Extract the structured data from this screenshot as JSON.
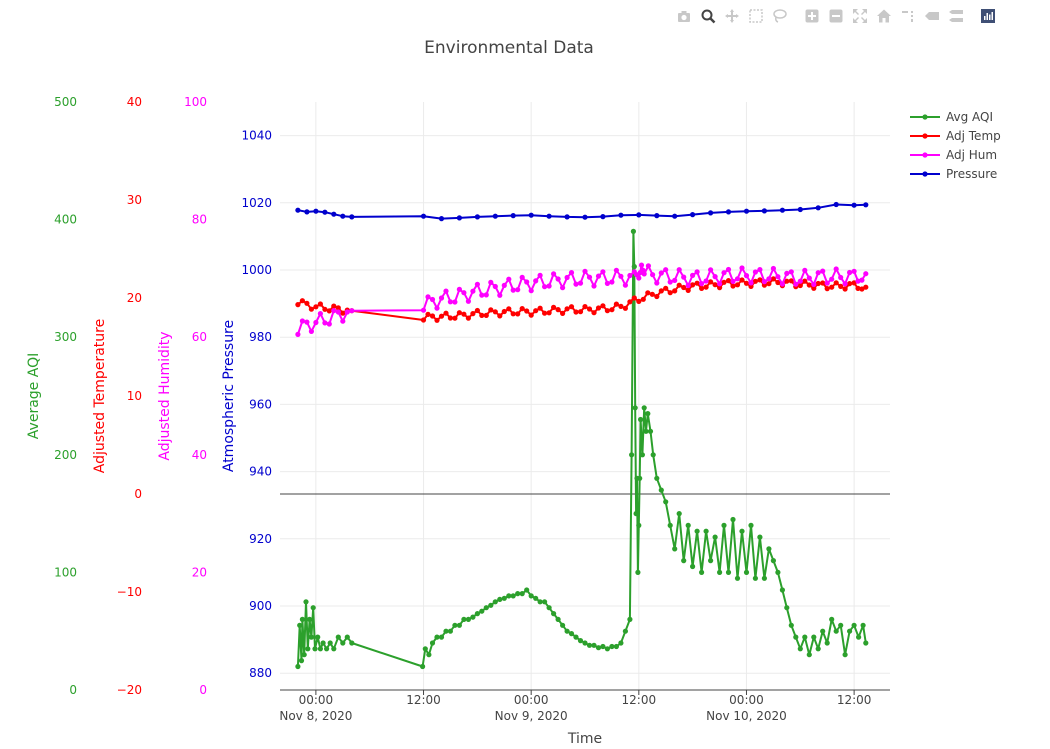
{
  "modebar": {
    "buttons": [
      {
        "name": "camera-icon",
        "active": false
      },
      {
        "name": "zoom-icon",
        "active": true
      },
      {
        "name": "pan-icon",
        "active": false
      },
      {
        "name": "box-select-icon",
        "active": false
      },
      {
        "name": "lasso-select-icon",
        "active": false
      },
      {
        "name": "zoom-in-icon",
        "active": false
      },
      {
        "name": "zoom-out-icon",
        "active": false
      },
      {
        "name": "autoscale-icon",
        "active": false
      },
      {
        "name": "reset-axes-icon",
        "active": false
      },
      {
        "name": "spike-lines-icon",
        "active": false
      },
      {
        "name": "hover-closest-icon",
        "active": false
      },
      {
        "name": "hover-compare-icon",
        "active": false
      },
      {
        "name": "plotly-logo-icon",
        "active": false
      }
    ]
  },
  "chart_data": {
    "type": "line",
    "title": "Environmental Data",
    "xlabel": "Time",
    "x_tick_labels": [
      {
        "t": 0,
        "line1": "00:00",
        "line2": "Nov 8, 2020"
      },
      {
        "t": 12,
        "line1": "12:00",
        "line2": ""
      },
      {
        "t": 24,
        "line1": "00:00",
        "line2": "Nov 9, 2020"
      },
      {
        "t": 36,
        "line1": "12:00",
        "line2": ""
      },
      {
        "t": 48,
        "line1": "00:00",
        "line2": "Nov 10, 2020"
      },
      {
        "t": 60,
        "line1": "12:00",
        "line2": ""
      }
    ],
    "xlim_hours": [
      -4,
      64
    ],
    "grid": true,
    "legend_position": "top-right",
    "axes": [
      {
        "id": "aqi",
        "label": "Average AQI",
        "color": "#2ca02c",
        "ylim": [
          0,
          500
        ],
        "ticks": [
          0,
          100,
          200,
          300,
          400,
          500
        ]
      },
      {
        "id": "temp",
        "label": "Adjusted Temperature",
        "color": "#ff0000",
        "ylim": [
          -20,
          40
        ],
        "ticks": [
          -20,
          -10,
          0,
          10,
          20,
          30,
          40
        ],
        "tick_labels": [
          "−20",
          "−10",
          "0",
          "10",
          "20",
          "30",
          "40"
        ]
      },
      {
        "id": "hum",
        "label": "Adjusted Humidity",
        "color": "#ff00ff",
        "ylim": [
          0,
          100
        ],
        "ticks": [
          0,
          20,
          40,
          60,
          80,
          100
        ]
      },
      {
        "id": "pres",
        "label": "Atmospheric Pressure",
        "color": "#0000cd",
        "ylim": [
          875,
          1050
        ],
        "ticks": [
          880,
          900,
          920,
          940,
          960,
          980,
          1000,
          1020,
          1040
        ]
      }
    ],
    "series": [
      {
        "name": "Avg AQI",
        "axis": "aqi",
        "color": "#2ca02c",
        "points": [
          [
            -2.0,
            20
          ],
          [
            -1.8,
            55
          ],
          [
            -1.6,
            25
          ],
          [
            -1.5,
            60
          ],
          [
            -1.3,
            30
          ],
          [
            -1.1,
            75
          ],
          [
            -0.9,
            35
          ],
          [
            -0.7,
            60
          ],
          [
            -0.5,
            45
          ],
          [
            -0.3,
            70
          ],
          [
            -0.1,
            35
          ],
          [
            0.2,
            45
          ],
          [
            0.5,
            35
          ],
          [
            0.8,
            40
          ],
          [
            1.2,
            35
          ],
          [
            1.6,
            40
          ],
          [
            2.0,
            35
          ],
          [
            2.5,
            45
          ],
          [
            3.0,
            40
          ],
          [
            3.5,
            45
          ],
          [
            4.0,
            40
          ],
          [
            11.9,
            20
          ],
          [
            12.2,
            35
          ],
          [
            12.6,
            30
          ],
          [
            13.0,
            40
          ],
          [
            13.5,
            45
          ],
          [
            14.0,
            45
          ],
          [
            14.5,
            50
          ],
          [
            15.0,
            50
          ],
          [
            15.5,
            55
          ],
          [
            16.0,
            55
          ],
          [
            16.5,
            60
          ],
          [
            17.0,
            60
          ],
          [
            17.5,
            62
          ],
          [
            18.0,
            65
          ],
          [
            18.5,
            67
          ],
          [
            19.0,
            70
          ],
          [
            19.5,
            72
          ],
          [
            20.0,
            75
          ],
          [
            20.5,
            77
          ],
          [
            21.0,
            78
          ],
          [
            21.5,
            80
          ],
          [
            22.0,
            80
          ],
          [
            22.5,
            82
          ],
          [
            23.0,
            82
          ],
          [
            23.5,
            85
          ],
          [
            24.0,
            80
          ],
          [
            24.5,
            78
          ],
          [
            25.0,
            75
          ],
          [
            25.5,
            75
          ],
          [
            26.0,
            70
          ],
          [
            26.5,
            65
          ],
          [
            27.0,
            60
          ],
          [
            27.5,
            55
          ],
          [
            28.0,
            50
          ],
          [
            28.5,
            48
          ],
          [
            29.0,
            45
          ],
          [
            29.5,
            42
          ],
          [
            30.0,
            40
          ],
          [
            30.5,
            38
          ],
          [
            31.0,
            38
          ],
          [
            31.5,
            36
          ],
          [
            32.0,
            37
          ],
          [
            32.5,
            35
          ],
          [
            33.0,
            37
          ],
          [
            33.5,
            37
          ],
          [
            34.0,
            40
          ],
          [
            34.5,
            50
          ],
          [
            35.0,
            60
          ],
          [
            35.2,
            200
          ],
          [
            35.4,
            390
          ],
          [
            35.5,
            360
          ],
          [
            35.6,
            240
          ],
          [
            35.7,
            150
          ],
          [
            35.8,
            180
          ],
          [
            35.9,
            100
          ],
          [
            36.0,
            140
          ],
          [
            36.1,
            180
          ],
          [
            36.2,
            230
          ],
          [
            36.4,
            200
          ],
          [
            36.6,
            240
          ],
          [
            36.8,
            220
          ],
          [
            37.0,
            235
          ],
          [
            37.3,
            220
          ],
          [
            37.6,
            200
          ],
          [
            38.0,
            180
          ],
          [
            38.5,
            170
          ],
          [
            39.0,
            160
          ],
          [
            39.5,
            140
          ],
          [
            40.0,
            120
          ],
          [
            40.5,
            150
          ],
          [
            41.0,
            110
          ],
          [
            41.5,
            140
          ],
          [
            42.0,
            105
          ],
          [
            42.5,
            135
          ],
          [
            43.0,
            100
          ],
          [
            43.5,
            135
          ],
          [
            44.0,
            110
          ],
          [
            44.5,
            130
          ],
          [
            45.0,
            100
          ],
          [
            45.5,
            140
          ],
          [
            46.0,
            100
          ],
          [
            46.5,
            145
          ],
          [
            47.0,
            95
          ],
          [
            47.5,
            135
          ],
          [
            48.0,
            100
          ],
          [
            48.5,
            140
          ],
          [
            49.0,
            95
          ],
          [
            49.5,
            130
          ],
          [
            50.0,
            95
          ],
          [
            50.5,
            120
          ],
          [
            51.0,
            110
          ],
          [
            51.5,
            100
          ],
          [
            52.0,
            85
          ],
          [
            52.5,
            70
          ],
          [
            53.0,
            55
          ],
          [
            53.5,
            45
          ],
          [
            54.0,
            35
          ],
          [
            54.5,
            45
          ],
          [
            55.0,
            30
          ],
          [
            55.5,
            45
          ],
          [
            56.0,
            35
          ],
          [
            56.5,
            50
          ],
          [
            57.0,
            40
          ],
          [
            57.5,
            60
          ],
          [
            58.0,
            50
          ],
          [
            58.5,
            55
          ],
          [
            59.0,
            30
          ],
          [
            59.5,
            50
          ],
          [
            60.0,
            55
          ],
          [
            60.5,
            45
          ],
          [
            61.0,
            55
          ],
          [
            61.3,
            40
          ]
        ]
      },
      {
        "name": "Adj Temp",
        "axis": "temp",
        "color": "#ff0000",
        "points": [
          [
            -2.0,
            19.6
          ],
          [
            -1.0,
            19.3
          ],
          [
            0.0,
            19.1
          ],
          [
            1.0,
            19.0
          ],
          [
            2.0,
            18.9
          ],
          [
            3.0,
            18.8
          ],
          [
            4.0,
            18.7
          ],
          [
            12.0,
            18.0
          ],
          [
            14.0,
            18.1
          ],
          [
            16.0,
            18.2
          ],
          [
            18.0,
            18.4
          ],
          [
            20.0,
            18.5
          ],
          [
            22.0,
            18.6
          ],
          [
            24.0,
            18.6
          ],
          [
            26.0,
            18.7
          ],
          [
            28.0,
            18.8
          ],
          [
            30.0,
            18.8
          ],
          [
            32.0,
            18.9
          ],
          [
            34.0,
            19.1
          ],
          [
            36.0,
            19.9
          ],
          [
            38.0,
            20.5
          ],
          [
            40.0,
            20.9
          ],
          [
            42.0,
            21.2
          ],
          [
            44.0,
            21.3
          ],
          [
            46.0,
            21.5
          ],
          [
            48.0,
            21.5
          ],
          [
            50.0,
            21.6
          ],
          [
            52.0,
            21.6
          ],
          [
            54.0,
            21.4
          ],
          [
            56.0,
            21.3
          ],
          [
            58.0,
            21.2
          ],
          [
            60.0,
            21.3
          ],
          [
            61.3,
            21.1
          ]
        ]
      },
      {
        "name": "Adj Hum",
        "axis": "hum",
        "color": "#ff00ff",
        "points": [
          [
            -2.0,
            61.5
          ],
          [
            -1.0,
            62.0
          ],
          [
            0.0,
            62.5
          ],
          [
            1.0,
            63.0
          ],
          [
            2.0,
            63.5
          ],
          [
            3.0,
            64.0
          ],
          [
            4.0,
            64.5
          ],
          [
            12.0,
            65.5
          ],
          [
            14.0,
            66.5
          ],
          [
            16.0,
            67.0
          ],
          [
            18.0,
            67.8
          ],
          [
            20.0,
            68.3
          ],
          [
            22.0,
            68.8
          ],
          [
            24.0,
            69.2
          ],
          [
            26.0,
            69.5
          ],
          [
            28.0,
            69.8
          ],
          [
            30.0,
            70.0
          ],
          [
            32.0,
            70.0
          ],
          [
            34.0,
            70.2
          ],
          [
            35.5,
            70.0
          ],
          [
            36.0,
            71.0
          ],
          [
            36.3,
            73.5
          ],
          [
            36.6,
            71.0
          ],
          [
            38.0,
            70.5
          ],
          [
            40.0,
            70.3
          ],
          [
            42.0,
            70.0
          ],
          [
            44.0,
            70.2
          ],
          [
            46.0,
            70.5
          ],
          [
            48.0,
            70.5
          ],
          [
            50.0,
            70.5
          ],
          [
            52.0,
            70.3
          ],
          [
            54.0,
            70.0
          ],
          [
            56.0,
            70.3
          ],
          [
            58.0,
            70.3
          ],
          [
            60.0,
            70.3
          ],
          [
            61.3,
            70.8
          ]
        ]
      },
      {
        "name": "Pressure",
        "axis": "pres",
        "color": "#0000cd",
        "points": [
          [
            -2.0,
            1017.8
          ],
          [
            -1.0,
            1017.3
          ],
          [
            0.0,
            1017.5
          ],
          [
            1.0,
            1017.2
          ],
          [
            2.0,
            1016.6
          ],
          [
            3.0,
            1016.0
          ],
          [
            4.0,
            1015.8
          ],
          [
            12.0,
            1016.0
          ],
          [
            14.0,
            1015.3
          ],
          [
            16.0,
            1015.5
          ],
          [
            18.0,
            1015.8
          ],
          [
            20.0,
            1016.0
          ],
          [
            22.0,
            1016.2
          ],
          [
            24.0,
            1016.3
          ],
          [
            26.0,
            1016.0
          ],
          [
            28.0,
            1015.8
          ],
          [
            30.0,
            1015.7
          ],
          [
            32.0,
            1015.9
          ],
          [
            34.0,
            1016.3
          ],
          [
            36.0,
            1016.4
          ],
          [
            38.0,
            1016.2
          ],
          [
            40.0,
            1016.0
          ],
          [
            42.0,
            1016.5
          ],
          [
            44.0,
            1017.0
          ],
          [
            46.0,
            1017.3
          ],
          [
            48.0,
            1017.5
          ],
          [
            50.0,
            1017.6
          ],
          [
            52.0,
            1017.8
          ],
          [
            54.0,
            1018.0
          ],
          [
            56.0,
            1018.5
          ],
          [
            58.0,
            1019.5
          ],
          [
            60.0,
            1019.3
          ],
          [
            61.3,
            1019.4
          ]
        ]
      }
    ],
    "ripple_amplitudes": {
      "Adj Temp": 0.35,
      "Adj Hum": 1.3,
      "Pressure": 0.0,
      "Avg AQI": 0.0
    },
    "reference_line": {
      "axis": "temp",
      "value": 0,
      "color": "#444444"
    }
  }
}
